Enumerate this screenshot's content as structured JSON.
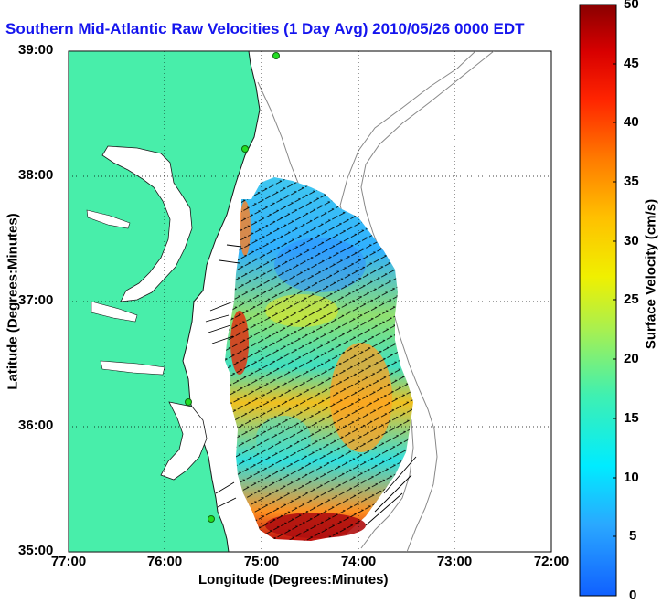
{
  "title": "Southern Mid-Atlantic Raw Velocities (1 Day Avg) 2010/05/26 0000 EDT",
  "axes": {
    "xlabel": "Longitude (Degrees:Minutes)",
    "ylabel": "Latitude (Degrees:Minutes)",
    "xticks": [
      "77:00",
      "76:00",
      "75:00",
      "74:00",
      "73:00",
      "72:00"
    ],
    "yticks": [
      "39:00",
      "38:00",
      "37:00",
      "36:00",
      "35:00"
    ]
  },
  "colorbar": {
    "label": "Surface Velocity (cm/s)",
    "ticks": [
      "50",
      "45",
      "40",
      "35",
      "30",
      "25",
      "20",
      "15",
      "10",
      "5",
      "0"
    ],
    "range": [
      0,
      50
    ]
  },
  "colors": {
    "land": "#48eeaa",
    "title": "#1515ee",
    "site": "#22dd22"
  }
}
